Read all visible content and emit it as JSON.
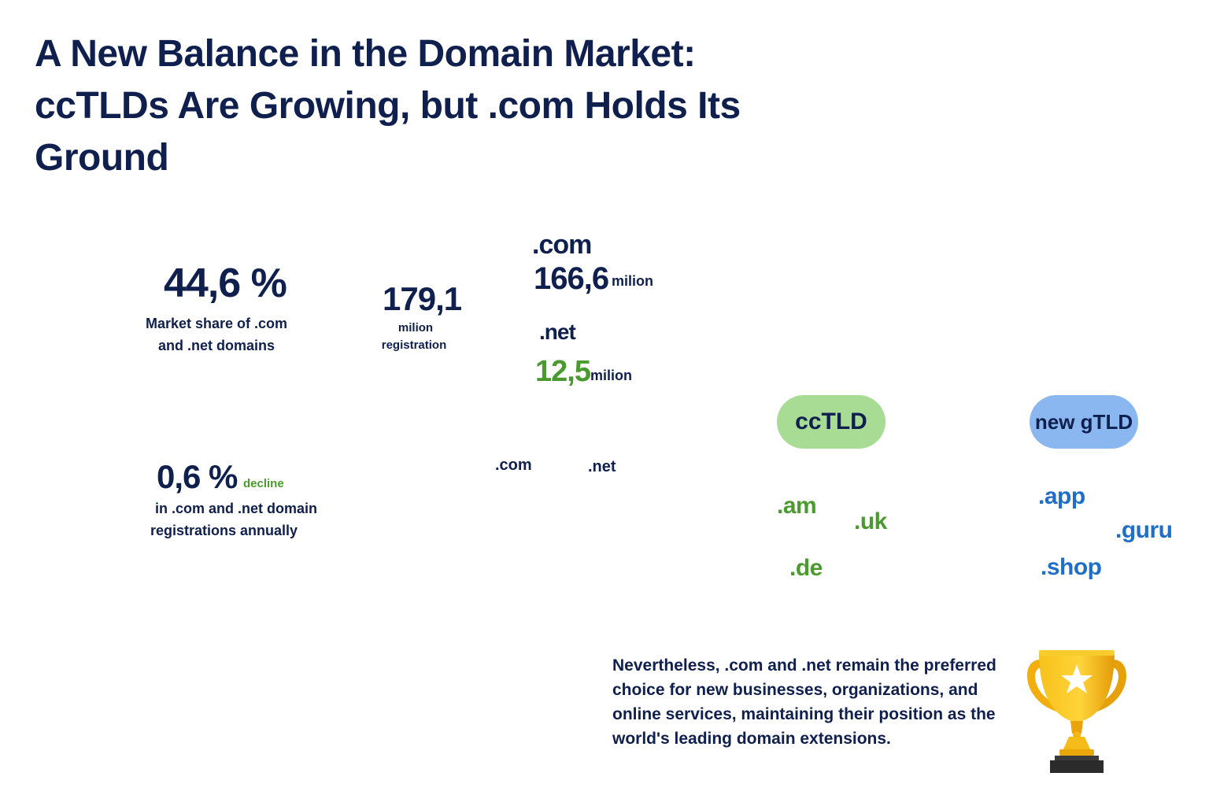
{
  "title": "A New Balance in the Domain Market: ccTLDs Are Growing, but .com Holds Its Ground",
  "share": {
    "value": "44,6 %",
    "label_line1": "Market share of .com",
    "label_line2": "and .net domains"
  },
  "total": {
    "value": "179,1",
    "label_line1": "milion",
    "label_line2": "registration"
  },
  "com": {
    "name": ".com",
    "value": "166,6",
    "unit": "milion"
  },
  "net": {
    "name": ".net",
    "value": "12,5",
    "unit": "milion"
  },
  "decline": {
    "value": "0,6 %",
    "tag": "decline",
    "label_line1": "in .com and .net domain",
    "label_line2": "registrations annually"
  },
  "small_labels": {
    "com": ".com",
    "net": ".net"
  },
  "cctld": {
    "pill": "ccTLD",
    "items": [
      ".am",
      ".uk",
      ".de"
    ]
  },
  "newgtld": {
    "pill": "new gTLD",
    "items": [
      ".app",
      ".guru",
      ".shop"
    ]
  },
  "note": "Nevertheless, .com and .net remain the preferred choice for new businesses, organizations, and online services, maintaining their position as the world's leading domain extensions.",
  "colors": {
    "navy": "#0f1f4e",
    "green": "#4a9a2f",
    "blue": "#1f6fc9",
    "cctld_pill": "#a8dc95",
    "newgtld_pill": "#8ab7f0",
    "trophy_gold": "#f5b812"
  },
  "icons": {
    "trophy": "trophy-icon"
  }
}
